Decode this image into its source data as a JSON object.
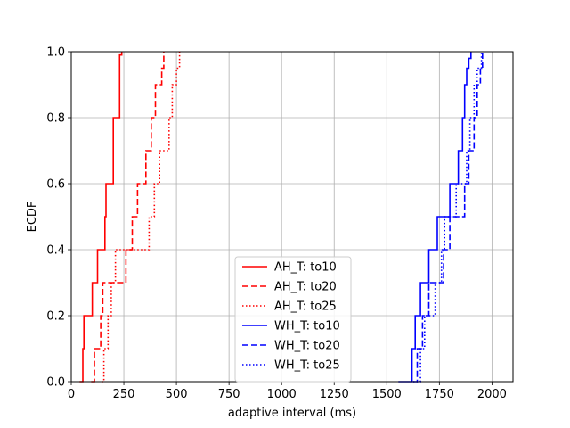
{
  "chart_data": {
    "type": "line",
    "xlabel": "adaptive interval (ms)",
    "ylabel": "ECDF",
    "xlim": [
      0,
      2100
    ],
    "ylim": [
      0,
      1.0
    ],
    "xticks": [
      0,
      250,
      500,
      750,
      1000,
      1250,
      1500,
      1750,
      2000
    ],
    "yticks": [
      0.0,
      0.2,
      0.4,
      0.6,
      0.8,
      1.0
    ],
    "xtick_labels": [
      "0",
      "250",
      "500",
      "750",
      "1000",
      "1250",
      "1500",
      "1750",
      "2000"
    ],
    "ytick_labels": [
      "0.0",
      "0.2",
      "0.4",
      "0.6",
      "0.8",
      "1.0"
    ],
    "grid": true,
    "legend_position": "lower-center",
    "series": [
      {
        "name": "AH_T: to10",
        "color": "#ff0000",
        "style": "solid",
        "x": [
          40,
          55,
          60,
          70,
          100,
          110,
          125,
          150,
          160,
          165,
          185,
          200,
          215,
          230,
          240
        ],
        "y": [
          0.0,
          0.1,
          0.2,
          0.2,
          0.3,
          0.3,
          0.4,
          0.4,
          0.5,
          0.6,
          0.6,
          0.8,
          0.8,
          0.99,
          1.0
        ]
      },
      {
        "name": "AH_T: to20",
        "color": "#ff0000",
        "style": "dashed",
        "x": [
          95,
          110,
          140,
          150,
          250,
          260,
          280,
          290,
          300,
          315,
          330,
          355,
          380,
          400,
          430,
          440
        ],
        "y": [
          0.0,
          0.1,
          0.2,
          0.3,
          0.3,
          0.4,
          0.4,
          0.5,
          0.5,
          0.6,
          0.6,
          0.7,
          0.8,
          0.9,
          0.95,
          1.0
        ]
      },
      {
        "name": "AH_T: to25",
        "color": "#ff0000",
        "style": "dotted",
        "x": [
          145,
          155,
          175,
          190,
          200,
          210,
          355,
          370,
          395,
          420,
          465,
          480,
          500,
          515
        ],
        "y": [
          0.0,
          0.1,
          0.2,
          0.3,
          0.3,
          0.4,
          0.4,
          0.5,
          0.6,
          0.7,
          0.8,
          0.9,
          0.95,
          1.0
        ]
      },
      {
        "name": "WH_T: to10",
        "color": "#0000ff",
        "style": "solid",
        "x": [
          1555,
          1620,
          1635,
          1660,
          1700,
          1740,
          1780,
          1800,
          1840,
          1860,
          1870,
          1880,
          1890,
          1900
        ],
        "y": [
          0.0,
          0.1,
          0.2,
          0.3,
          0.4,
          0.5,
          0.5,
          0.6,
          0.7,
          0.8,
          0.9,
          0.95,
          0.98,
          1.0
        ]
      },
      {
        "name": "WH_T: to20",
        "color": "#0000ff",
        "style": "dashed",
        "x": [
          1625,
          1645,
          1670,
          1700,
          1755,
          1770,
          1800,
          1840,
          1870,
          1890,
          1915,
          1930,
          1945,
          1955
        ],
        "y": [
          0.0,
          0.1,
          0.2,
          0.3,
          0.3,
          0.4,
          0.5,
          0.5,
          0.6,
          0.7,
          0.8,
          0.9,
          0.95,
          1.0
        ]
      },
      {
        "name": "WH_T: to25",
        "color": "#0000ff",
        "style": "dotted",
        "x": [
          1625,
          1660,
          1680,
          1730,
          1760,
          1775,
          1795,
          1830,
          1860,
          1880,
          1895,
          1915,
          1930,
          1950
        ],
        "y": [
          0.0,
          0.1,
          0.2,
          0.3,
          0.4,
          0.5,
          0.5,
          0.6,
          0.6,
          0.7,
          0.8,
          0.9,
          0.95,
          1.0
        ]
      }
    ]
  }
}
